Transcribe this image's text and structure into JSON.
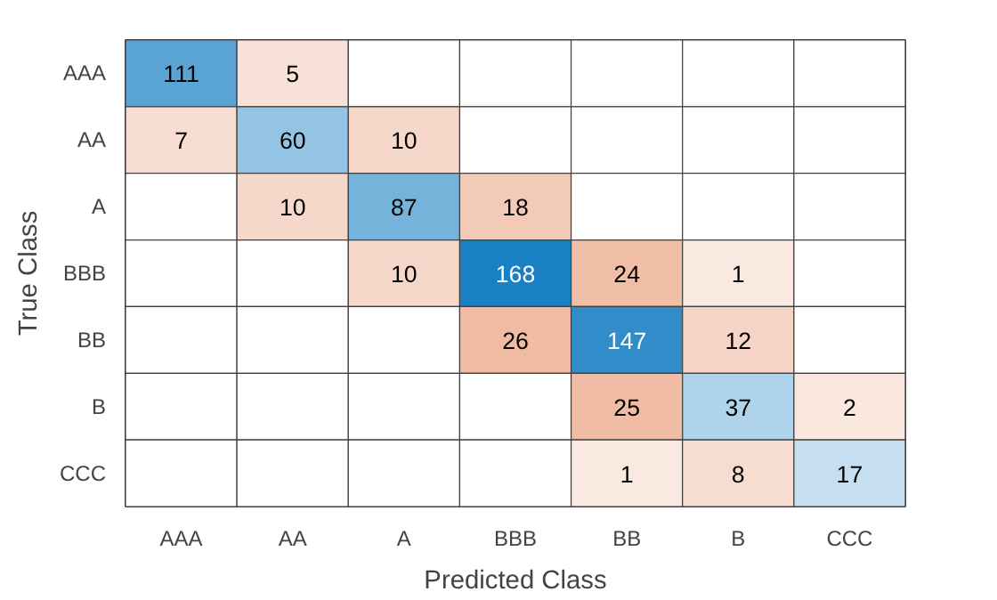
{
  "chart_data": {
    "type": "heatmap",
    "xlabel": "Predicted Class",
    "ylabel": "True Class",
    "categories": [
      "AAA",
      "AA",
      "A",
      "BBB",
      "BB",
      "B",
      "CCC"
    ],
    "y_categories": [
      "AAA",
      "AA",
      "A",
      "BBB",
      "BB",
      "B",
      "CCC"
    ],
    "colors": [
      "#0072bd",
      "#d95319"
    ],
    "data_labels": true,
    "cells": [
      [
        111,
        5,
        null,
        null,
        null,
        null,
        null
      ],
      [
        7,
        60,
        10,
        null,
        null,
        null,
        null
      ],
      [
        null,
        10,
        87,
        18,
        null,
        null,
        null
      ],
      [
        null,
        null,
        10,
        168,
        24,
        1,
        null
      ],
      [
        null,
        null,
        null,
        26,
        147,
        12,
        null
      ],
      [
        null,
        null,
        null,
        null,
        25,
        37,
        2
      ],
      [
        null,
        null,
        null,
        null,
        1,
        8,
        17
      ]
    ]
  }
}
